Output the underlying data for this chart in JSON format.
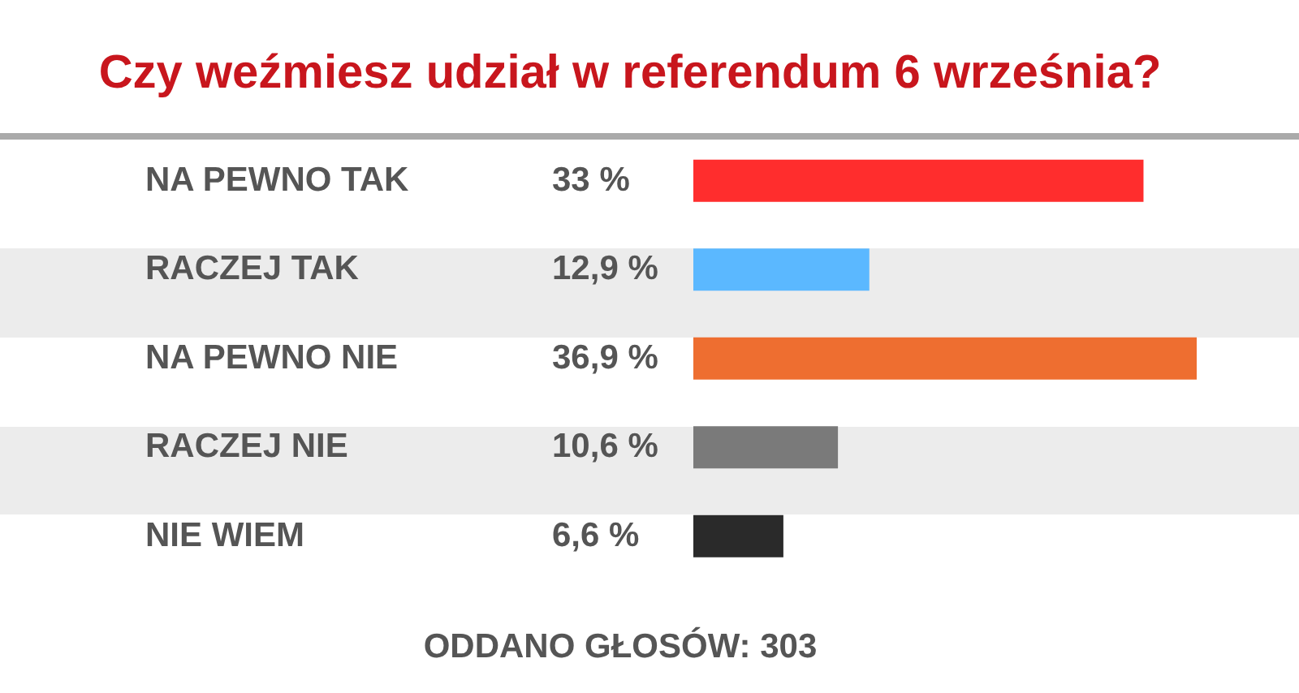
{
  "chart_data": {
    "type": "bar",
    "orientation": "horizontal",
    "title": "Czy weźmiesz udział w referendum 6 września?",
    "categories": [
      "NA PEWNO TAK",
      "RACZEJ TAK",
      "NA PEWNO NIE",
      "RACZEJ NIE",
      "NIE WIEM"
    ],
    "values": [
      33,
      12.9,
      36.9,
      10.6,
      6.6
    ],
    "value_labels": [
      "33 %",
      "12,9 %",
      "36,9 %",
      "10,6 %",
      "6,6 %"
    ],
    "colors": [
      "#ff2d2d",
      "#5bb8ff",
      "#ee6e30",
      "#7a7a7a",
      "#2a2a2a"
    ],
    "annotations": [
      "ODDANO GŁOSÓW: 303"
    ]
  }
}
